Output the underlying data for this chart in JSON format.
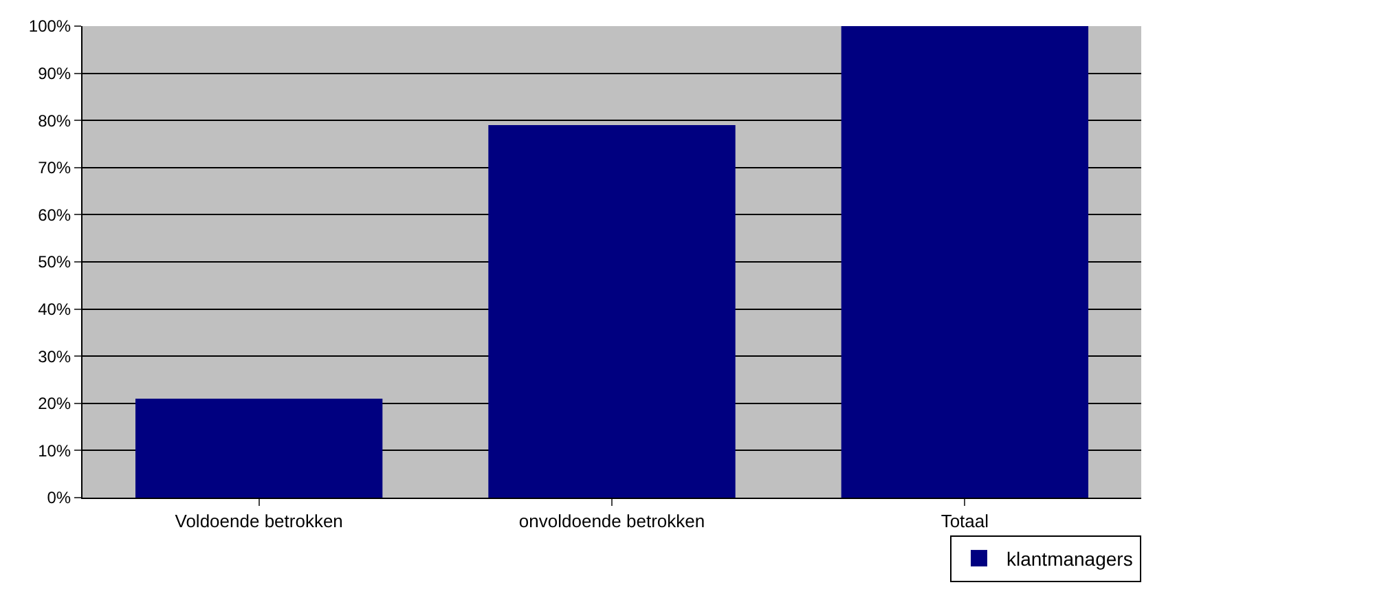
{
  "chart_data": {
    "type": "bar",
    "categories": [
      "Voldoende betrokken",
      "onvoldoende betrokken",
      "Totaal"
    ],
    "series": [
      {
        "name": "klantmanagers",
        "color": "#000080",
        "values": [
          21,
          79,
          100
        ]
      }
    ],
    "ylim": [
      0,
      100
    ],
    "yticks": [
      {
        "value": 0,
        "label": "0%"
      },
      {
        "value": 10,
        "label": "10%"
      },
      {
        "value": 20,
        "label": "20%"
      },
      {
        "value": 30,
        "label": "30%"
      },
      {
        "value": 40,
        "label": "40%"
      },
      {
        "value": 50,
        "label": "50%"
      },
      {
        "value": 60,
        "label": "60%"
      },
      {
        "value": 70,
        "label": "70%"
      },
      {
        "value": 80,
        "label": "80%"
      },
      {
        "value": 90,
        "label": "90%"
      },
      {
        "value": 100,
        "label": "100%"
      }
    ],
    "grid": "y",
    "legend": "bottom right"
  }
}
